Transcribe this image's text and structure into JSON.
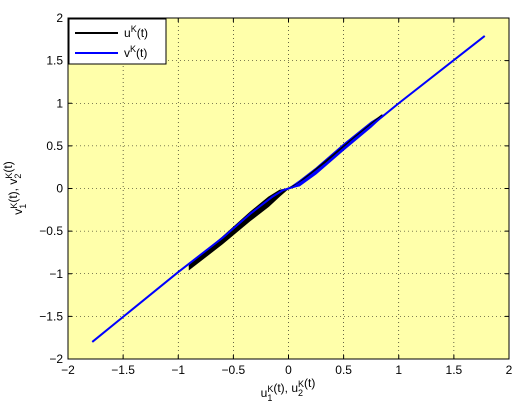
{
  "chart_data": {
    "type": "line",
    "background_color": "#FFFFAA",
    "grid": true,
    "grid_style": "dotted",
    "xlim": [
      -2,
      2
    ],
    "ylim": [
      -2,
      2
    ],
    "xticks": [
      -2,
      -1.5,
      -1,
      -0.5,
      0,
      0.5,
      1,
      1.5,
      2
    ],
    "yticks": [
      -2,
      -1.5,
      -1,
      -0.5,
      0,
      0.5,
      1,
      1.5,
      2
    ],
    "xtick_labels": [
      "−2",
      "−1.5",
      "−1",
      "−0.5",
      "0",
      "0.5",
      "1",
      "1.5",
      "2"
    ],
    "ytick_labels": [
      "−2",
      "−1.5",
      "−1",
      "−0.5",
      "0",
      "0.5",
      "1",
      "1.5",
      "2"
    ],
    "xlabel": {
      "parts": [
        {
          "t": "u",
          "s": "base"
        },
        {
          "t": "1",
          "s": "sub"
        },
        {
          "t": "K",
          "s": "sup"
        },
        {
          "t": "(t), u",
          "s": "base"
        },
        {
          "t": "2",
          "s": "sub"
        },
        {
          "t": "K",
          "s": "sup"
        },
        {
          "t": "(t)",
          "s": "base"
        }
      ]
    },
    "ylabel": {
      "parts": [
        {
          "t": "v",
          "s": "base"
        },
        {
          "t": "1",
          "s": "sub"
        },
        {
          "t": "K",
          "s": "sup"
        },
        {
          "t": "(t), v",
          "s": "base"
        },
        {
          "t": "2",
          "s": "sub"
        },
        {
          "t": "K",
          "s": "sup"
        },
        {
          "t": "(t)",
          "s": "base"
        }
      ]
    },
    "legend_position": "top-left",
    "series": [
      {
        "name": "u^K(t)",
        "label_base": "u",
        "label_sup": "K",
        "label_rest": "(t)",
        "color": "#000000",
        "points": [
          [
            -0.9,
            -0.92
          ],
          [
            -0.6,
            -0.6
          ],
          [
            -0.35,
            -0.33
          ],
          [
            -0.18,
            -0.16
          ],
          [
            -0.08,
            -0.05
          ],
          [
            0,
            0
          ],
          [
            0.08,
            0.05
          ],
          [
            0.18,
            0.15
          ],
          [
            0.35,
            0.33
          ],
          [
            0.6,
            0.6
          ],
          [
            0.85,
            0.86
          ]
        ]
      },
      {
        "name": "v^K(t)",
        "label_base": "v",
        "label_sup": "K",
        "label_rest": "(t)",
        "color": "#0000FF",
        "points": [
          [
            -1.78,
            -1.8
          ],
          [
            -1.0,
            -0.98
          ],
          [
            -0.6,
            -0.58
          ],
          [
            -0.35,
            -0.3
          ],
          [
            -0.15,
            -0.1
          ],
          [
            -0.05,
            -0.02
          ],
          [
            0,
            0
          ],
          [
            0.05,
            0.02
          ],
          [
            0.15,
            0.1
          ],
          [
            0.35,
            0.3
          ],
          [
            0.6,
            0.58
          ],
          [
            1.0,
            1.0
          ],
          [
            1.78,
            1.79
          ]
        ]
      }
    ],
    "band_series": [
      {
        "name": "u^K(t) band",
        "color": "#000000",
        "upper": [
          [
            -0.9,
            -0.9
          ],
          [
            -0.6,
            -0.57
          ],
          [
            -0.35,
            -0.28
          ],
          [
            -0.18,
            -0.1
          ],
          [
            -0.08,
            -0.02
          ],
          [
            0,
            0
          ]
        ],
        "lower": [
          [
            -0.9,
            -0.95
          ],
          [
            -0.6,
            -0.65
          ],
          [
            -0.35,
            -0.38
          ],
          [
            -0.18,
            -0.21
          ],
          [
            -0.08,
            -0.09
          ],
          [
            0,
            0
          ]
        ]
      },
      {
        "name": "v^K(t) band",
        "color": "#0000FF",
        "upper": [
          [
            0,
            0
          ],
          [
            0.1,
            0.09
          ],
          [
            0.25,
            0.24
          ],
          [
            0.5,
            0.52
          ],
          [
            0.75,
            0.78
          ],
          [
            0.85,
            0.86
          ]
        ],
        "lower": [
          [
            0,
            0
          ],
          [
            0.1,
            0.03
          ],
          [
            0.25,
            0.17
          ],
          [
            0.5,
            0.45
          ],
          [
            0.75,
            0.72
          ],
          [
            0.85,
            0.84
          ]
        ]
      }
    ]
  }
}
